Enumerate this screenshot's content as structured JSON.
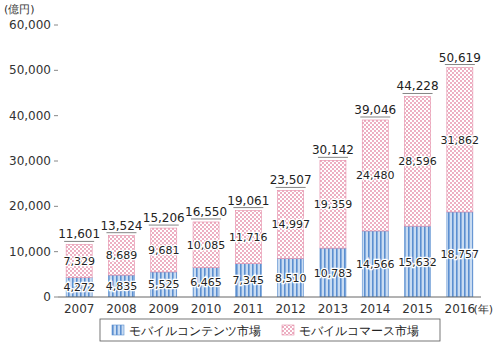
{
  "chart_data": {
    "type": "bar",
    "stacked": true,
    "data_labels": true,
    "grid": false,
    "legend": "bottom",
    "y_label": "(億円)",
    "x_label": "(年)",
    "categories": [
      "2007",
      "2008",
      "2009",
      "2010",
      "2011",
      "2012",
      "2013",
      "2014",
      "2015",
      "2016"
    ],
    "series": [
      {
        "name": "モバイルコンテンツ市場",
        "color": "#5b8fd0",
        "values": [
          4272,
          4835,
          5525,
          6465,
          7345,
          8510,
          10783,
          14566,
          15632,
          18757
        ],
        "value_labels": [
          "4,272",
          "4,835",
          "5,525",
          "6,465",
          "7,345",
          "8,510",
          "10,783",
          "14,566",
          "15,632",
          "18,757"
        ]
      },
      {
        "name": "モバイルコマース市場",
        "color": "#e58aa6",
        "values": [
          7329,
          8689,
          9681,
          10085,
          11716,
          14997,
          19359,
          24480,
          28596,
          31862
        ],
        "value_labels": [
          "7,329",
          "8,689",
          "9,681",
          "10,085",
          "11,716",
          "14,997",
          "19,359",
          "24,480",
          "28,596",
          "31,862"
        ]
      }
    ],
    "total_labels": [
      "11,601",
      "13,524",
      "15,206",
      "16,550",
      "19,061",
      "23,507",
      "30,142",
      "39,046",
      "44,228",
      "50,619"
    ],
    "ylim": [
      0,
      60000
    ],
    "yticks": [
      0,
      {
        "value": 10000,
        "label": "10,000"
      },
      {
        "value": 20000,
        "label": "20,000"
      },
      {
        "value": 30000,
        "label": "30,000"
      },
      {
        "value": 40000,
        "label": "40,000"
      },
      {
        "value": 50000,
        "label": "50,000"
      },
      {
        "value": 60000,
        "label": "60,000"
      }
    ]
  }
}
